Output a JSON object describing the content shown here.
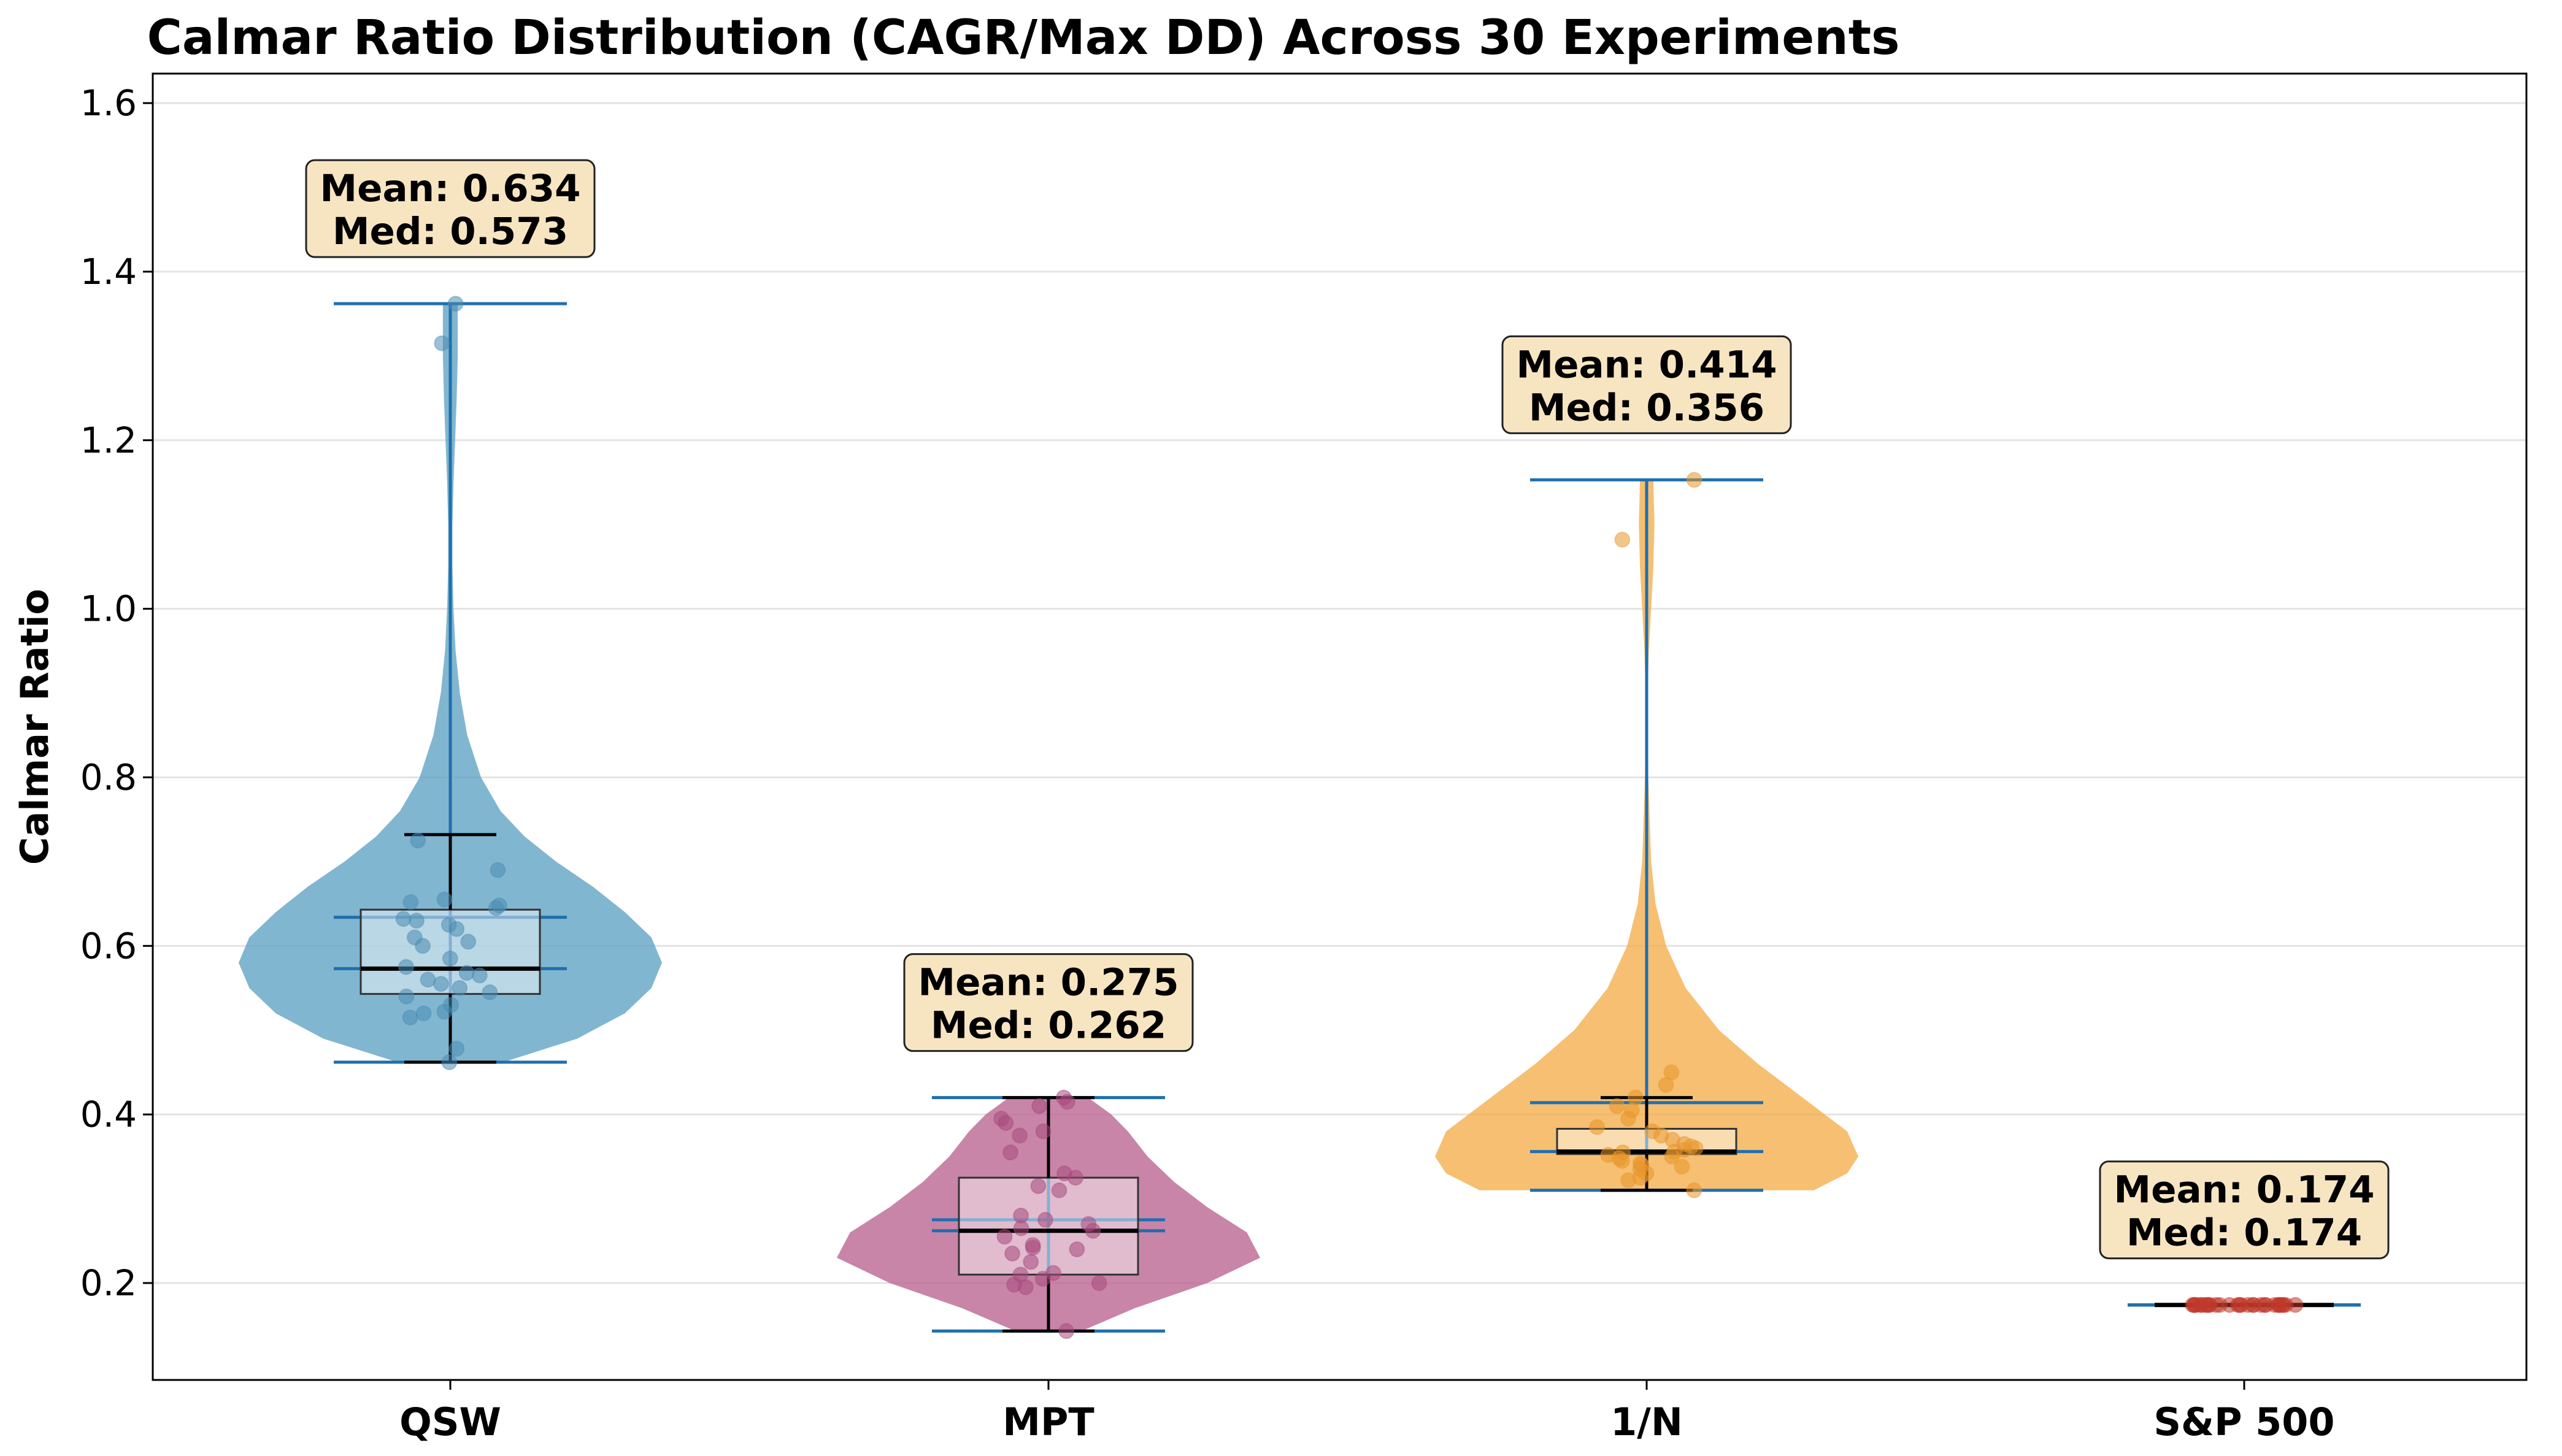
{
  "chart_data": {
    "type": "violin",
    "title": "Calmar Ratio Distribution (CAGR/Max DD) Across 30 Experiments",
    "xlabel": "",
    "ylabel": "Calmar Ratio",
    "ylim": [
      0.085,
      1.635
    ],
    "yticks": [
      0.2,
      0.4,
      0.6,
      0.8,
      1.0,
      1.2,
      1.4,
      1.6
    ],
    "ytick_labels": [
      "0.2",
      "0.4",
      "0.6",
      "0.8",
      "1.0",
      "1.2",
      "1.4",
      "1.6"
    ],
    "grid": "horizontal",
    "categories": [
      "QSW",
      "MPT",
      "1/N",
      "S&P 500"
    ],
    "series": [
      {
        "name": "QSW",
        "color": "#5da1c3",
        "point_color": "#4b8db3",
        "mean": 0.634,
        "median": 0.573,
        "q1": 0.543,
        "q3": 0.643,
        "min": 0.462,
        "max": 1.362,
        "whisker_high": 0.732,
        "mean_label": "Mean: 0.634",
        "median_label": "Med: 0.573",
        "points": [
          0.462,
          0.478,
          0.515,
          0.52,
          0.522,
          0.53,
          0.54,
          0.545,
          0.55,
          0.555,
          0.56,
          0.565,
          0.568,
          0.575,
          0.585,
          0.6,
          0.605,
          0.61,
          0.62,
          0.625,
          0.63,
          0.632,
          0.645,
          0.648,
          0.652,
          0.655,
          0.69,
          0.725,
          1.315,
          1.362
        ],
        "kde": [
          [
            0.462,
            0.1
          ],
          [
            0.49,
            0.24
          ],
          [
            0.52,
            0.33
          ],
          [
            0.55,
            0.38
          ],
          [
            0.58,
            0.4
          ],
          [
            0.61,
            0.38
          ],
          [
            0.64,
            0.33
          ],
          [
            0.67,
            0.27
          ],
          [
            0.7,
            0.2
          ],
          [
            0.73,
            0.14
          ],
          [
            0.76,
            0.095
          ],
          [
            0.8,
            0.058
          ],
          [
            0.85,
            0.032
          ],
          [
            0.9,
            0.018
          ],
          [
            0.95,
            0.01
          ],
          [
            1.0,
            0.006
          ],
          [
            1.05,
            0.004
          ],
          [
            1.1,
            0.004
          ],
          [
            1.15,
            0.006
          ],
          [
            1.2,
            0.009
          ],
          [
            1.25,
            0.012
          ],
          [
            1.3,
            0.014
          ],
          [
            1.362,
            0.014
          ]
        ]
      },
      {
        "name": "MPT",
        "color": "#b8638f",
        "point_color": "#a8487c",
        "mean": 0.275,
        "median": 0.262,
        "q1": 0.21,
        "q3": 0.325,
        "min": 0.143,
        "max": 0.42,
        "whisker_high": 0.42,
        "mean_label": "Mean: 0.275",
        "median_label": "Med: 0.262",
        "points": [
          0.143,
          0.195,
          0.198,
          0.2,
          0.205,
          0.21,
          0.212,
          0.225,
          0.235,
          0.24,
          0.242,
          0.245,
          0.255,
          0.262,
          0.265,
          0.27,
          0.275,
          0.28,
          0.31,
          0.315,
          0.325,
          0.33,
          0.355,
          0.375,
          0.38,
          0.39,
          0.395,
          0.41,
          0.415,
          0.42
        ],
        "kde": [
          [
            0.143,
            0.05
          ],
          [
            0.17,
            0.13
          ],
          [
            0.2,
            0.24
          ],
          [
            0.23,
            0.32
          ],
          [
            0.26,
            0.3
          ],
          [
            0.29,
            0.24
          ],
          [
            0.32,
            0.19
          ],
          [
            0.35,
            0.15
          ],
          [
            0.38,
            0.12
          ],
          [
            0.4,
            0.095
          ],
          [
            0.42,
            0.06
          ]
        ]
      },
      {
        "name": "1/N",
        "color": "#f4ad4a",
        "point_color": "#e8962a",
        "mean": 0.414,
        "median": 0.356,
        "q1": 0.353,
        "q3": 0.383,
        "min": 0.31,
        "max": 1.153,
        "whisker_high": 0.42,
        "mean_label": "Mean: 0.414",
        "median_label": "Med: 0.356",
        "points": [
          0.31,
          0.322,
          0.325,
          0.33,
          0.335,
          0.338,
          0.34,
          0.342,
          0.345,
          0.348,
          0.35,
          0.352,
          0.355,
          0.356,
          0.358,
          0.36,
          0.362,
          0.365,
          0.37,
          0.375,
          0.38,
          0.385,
          0.395,
          0.405,
          0.41,
          0.42,
          0.435,
          0.45,
          1.082,
          1.153
        ],
        "kde": [
          [
            0.31,
            0.3
          ],
          [
            0.33,
            0.36
          ],
          [
            0.35,
            0.38
          ],
          [
            0.38,
            0.36
          ],
          [
            0.42,
            0.28
          ],
          [
            0.46,
            0.2
          ],
          [
            0.5,
            0.13
          ],
          [
            0.55,
            0.07
          ],
          [
            0.6,
            0.035
          ],
          [
            0.65,
            0.016
          ],
          [
            0.7,
            0.008
          ],
          [
            0.8,
            0.003
          ],
          [
            0.9,
            0.002
          ],
          [
            0.95,
            0.004
          ],
          [
            1.0,
            0.008
          ],
          [
            1.05,
            0.012
          ],
          [
            1.1,
            0.014
          ],
          [
            1.153,
            0.012
          ]
        ]
      },
      {
        "name": "S&P 500",
        "color": "#e07b54",
        "point_color": "#c0392b",
        "mean": 0.174,
        "median": 0.174,
        "q1": 0.174,
        "q3": 0.174,
        "min": 0.174,
        "max": 0.174,
        "whisker_high": 0.174,
        "mean_label": "Mean: 0.174",
        "median_label": "Med: 0.174",
        "points": [
          0.174,
          0.174,
          0.174,
          0.174,
          0.174,
          0.174,
          0.174,
          0.174,
          0.174,
          0.174,
          0.174,
          0.174,
          0.174,
          0.174,
          0.174,
          0.174,
          0.174,
          0.174,
          0.174,
          0.174,
          0.174,
          0.174,
          0.174,
          0.174,
          0.174,
          0.174,
          0.174,
          0.174,
          0.174,
          0.174
        ],
        "kde": []
      }
    ]
  }
}
